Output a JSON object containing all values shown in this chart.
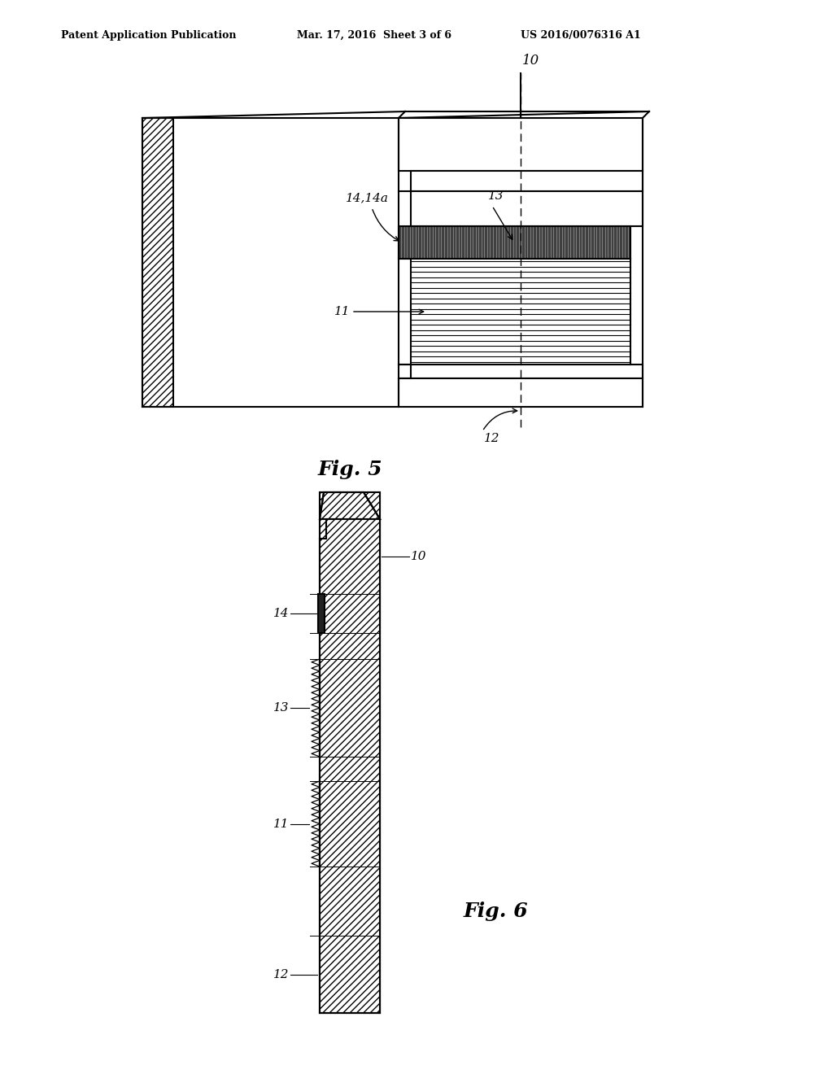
{
  "header_left": "Patent Application Publication",
  "header_center": "Mar. 17, 2016  Sheet 3 of 6",
  "header_right": "US 2016/0076316 A1",
  "fig5_label": "Fig. 5",
  "fig6_label": "Fig. 6",
  "bg_color": "#ffffff",
  "line_color": "#000000",
  "label_10_fig5": "10",
  "label_11_fig5": "11",
  "label_12_fig5": "12",
  "label_13_fig5": "13",
  "label_14_fig5": "14,14a",
  "label_10_fig6": "10",
  "label_11_fig6": "11",
  "label_12_fig6": "12",
  "label_13_fig6": "13",
  "label_14_fig6": "14"
}
